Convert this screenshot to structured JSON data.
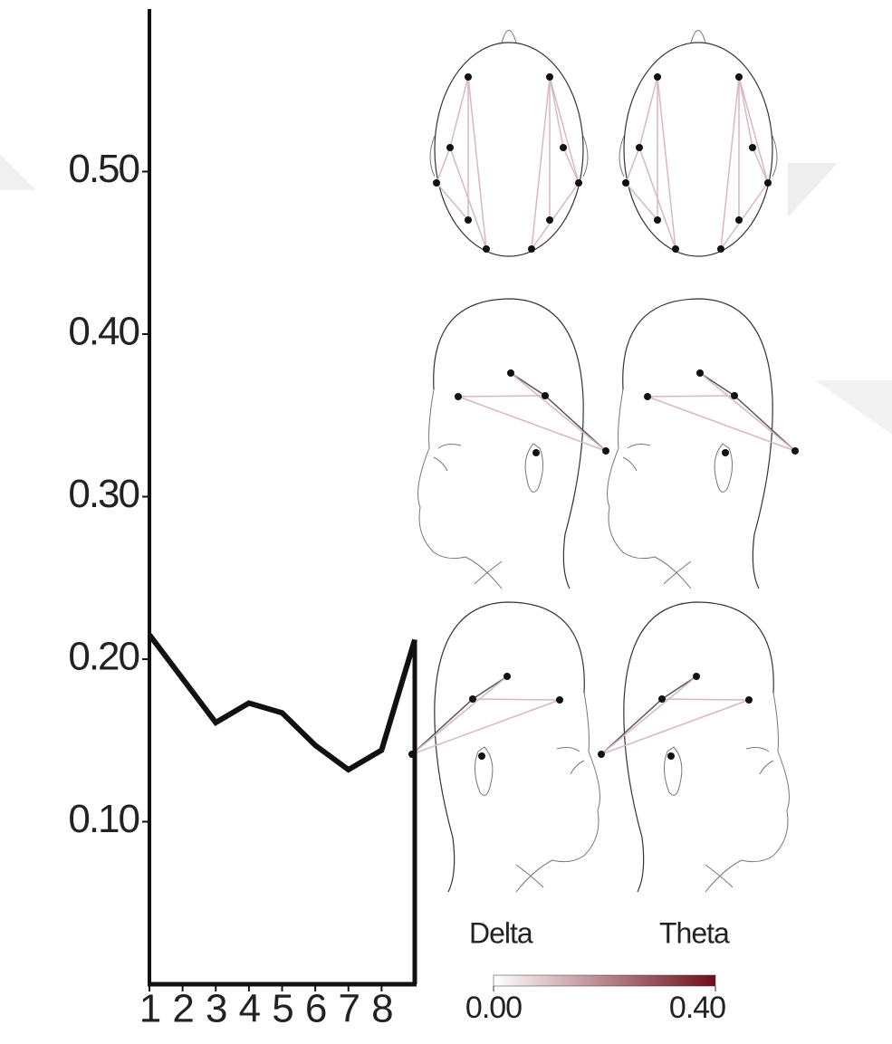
{
  "chart_data": {
    "type": "line",
    "x": [
      1,
      3,
      4,
      5,
      6,
      7,
      8,
      9
    ],
    "values": [
      0.215,
      0.161,
      0.173,
      0.167,
      0.147,
      0.132,
      0.144,
      0.212
    ],
    "color": "#111111",
    "xlim": [
      1,
      9
    ],
    "xticks": [
      1,
      2,
      3,
      4,
      5,
      6,
      7,
      8
    ],
    "ylim": [
      0,
      0.6
    ],
    "yticks": [
      {
        "value": 0.1,
        "label": "0.10"
      },
      {
        "value": 0.2,
        "label": "0.20"
      },
      {
        "value": 0.3,
        "label": "0.30"
      },
      {
        "value": 0.4,
        "label": "0.40"
      },
      {
        "value": 0.5,
        "label": "0.50"
      }
    ],
    "band_labels": [
      "Delta",
      "Theta"
    ],
    "colorbar": {
      "lim": [
        0,
        0.4
      ],
      "ticks": [
        {
          "value": 0,
          "label": "0.00"
        },
        {
          "value": 0.4,
          "label": "0.40"
        }
      ],
      "colors": [
        "#ffffff",
        "#6e0f1c"
      ]
    }
  }
}
